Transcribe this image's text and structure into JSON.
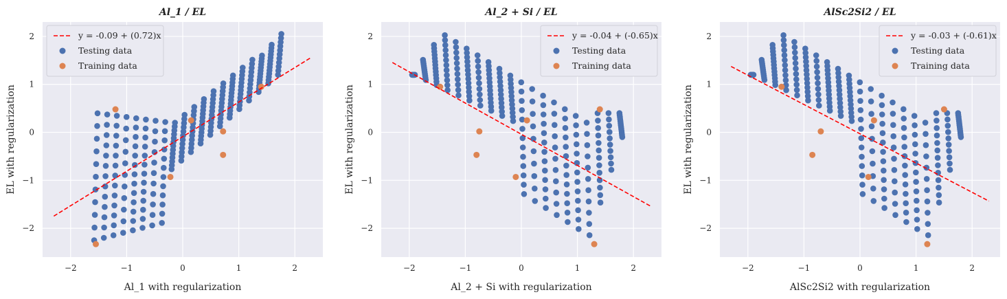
{
  "chart_data": [
    {
      "type": "scatter",
      "title": "Al_1 / EL",
      "xlabel": "Al_1 with regularization",
      "ylabel": "EL with regularization",
      "xlim": [
        -2.5,
        2.5
      ],
      "ylim": [
        -2.6,
        2.3
      ],
      "xticks": [
        -2,
        -1,
        0,
        1,
        2
      ],
      "yticks": [
        -2,
        -1,
        0,
        1,
        2
      ],
      "grid": true,
      "legend_position": "top-left",
      "fit_line": {
        "label": "y = -0.09 + (0.72)x",
        "intercept": -0.09,
        "slope": 0.72,
        "x_range": [
          -2.3,
          2.3
        ],
        "color": "#ff0000"
      },
      "series": [
        {
          "name": "Testing data",
          "color": "#4c72b0",
          "pattern": "rising_v"
        },
        {
          "name": "Training data",
          "color": "#dd8452",
          "points": [
            [
              -1.55,
              -2.33
            ],
            [
              -1.2,
              0.48
            ],
            [
              -0.22,
              -0.93
            ],
            [
              0.15,
              0.25
            ],
            [
              0.72,
              0.02
            ],
            [
              0.72,
              -0.47
            ],
            [
              1.4,
              0.95
            ]
          ]
        }
      ]
    },
    {
      "type": "scatter",
      "title": "Al_2 + Si / EL",
      "xlabel": "Al_2 + Si with regularization",
      "ylabel": "EL with regularization",
      "xlim": [
        -2.5,
        2.5
      ],
      "ylim": [
        -2.6,
        2.3
      ],
      "xticks": [
        -2,
        -1,
        0,
        1,
        2
      ],
      "yticks": [
        -2,
        -1,
        0,
        1,
        2
      ],
      "grid": true,
      "legend_position": "top-right",
      "fit_line": {
        "label": "y = -0.04 + (-0.65)x",
        "intercept": -0.04,
        "slope": -0.65,
        "x_range": [
          -2.3,
          2.3
        ],
        "color": "#ff0000"
      },
      "series": [
        {
          "name": "Testing data",
          "color": "#4c72b0",
          "pattern": "falling_v"
        },
        {
          "name": "Training data",
          "color": "#dd8452",
          "points": [
            [
              -1.45,
              0.95
            ],
            [
              -0.8,
              -0.47
            ],
            [
              -0.75,
              0.02
            ],
            [
              -0.1,
              -0.93
            ],
            [
              0.1,
              0.25
            ],
            [
              1.3,
              -2.33
            ],
            [
              1.4,
              0.48
            ]
          ]
        }
      ]
    },
    {
      "type": "scatter",
      "title": "AlSc2Si2 / EL",
      "xlabel": "AlSc2Si2 with regularization",
      "ylabel": "EL with regularization",
      "xlim": [
        -2.5,
        2.5
      ],
      "ylim": [
        -2.6,
        2.3
      ],
      "xticks": [
        -2,
        -1,
        0,
        1,
        2
      ],
      "yticks": [
        -2,
        -1,
        0,
        1,
        2
      ],
      "grid": true,
      "legend_position": "top-right",
      "fit_line": {
        "label": "y = -0.03 + (-0.61)x",
        "intercept": -0.03,
        "slope": -0.61,
        "x_range": [
          -2.3,
          2.3
        ],
        "color": "#ff0000"
      },
      "series": [
        {
          "name": "Testing data",
          "color": "#4c72b0",
          "pattern": "falling_v"
        },
        {
          "name": "Training data",
          "color": "#dd8452",
          "points": [
            [
              -1.4,
              0.95
            ],
            [
              -0.85,
              -0.47
            ],
            [
              -0.7,
              0.02
            ],
            [
              0.15,
              -0.93
            ],
            [
              0.25,
              0.25
            ],
            [
              1.2,
              -2.33
            ],
            [
              1.5,
              0.48
            ]
          ]
        }
      ]
    }
  ]
}
